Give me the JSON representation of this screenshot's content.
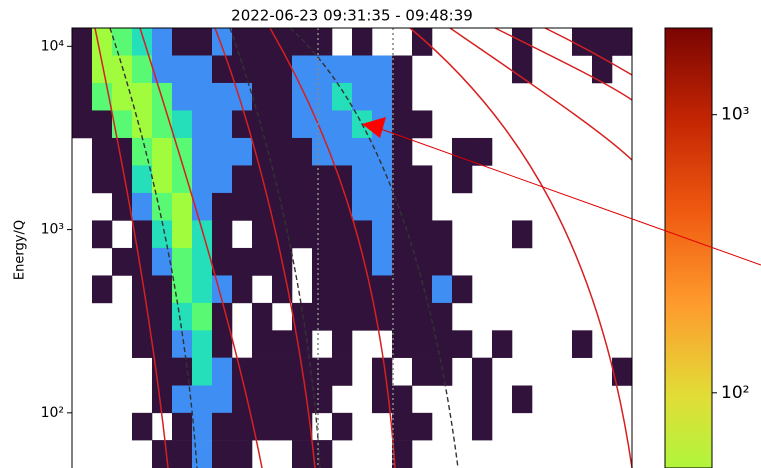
{
  "chart_data": {
    "type": "heatmap",
    "title": "2022-06-23 09:31:35 - 09:48:39",
    "y_label": "Energy/Q",
    "y_log": true,
    "ylim": [
      50,
      12589
    ],
    "y_edges": [
      12589,
      8913,
      6310,
      4467,
      3162,
      2239,
      1585,
      1122,
      794,
      562,
      398,
      282,
      200,
      141,
      100,
      71,
      50
    ],
    "yticks": [
      {
        "value": 10000,
        "label": "10⁴"
      },
      {
        "value": 1000,
        "label": "10³"
      },
      {
        "value": 100,
        "label": "10²"
      }
    ],
    "colormap": "turbo",
    "clim": [
      1,
      2050
    ],
    "colorbar_ticks": [
      {
        "value": 1000,
        "label": "10³"
      },
      {
        "value": 100,
        "label": "10²"
      }
    ],
    "z": [
      [
        1,
        45,
        25,
        12,
        4,
        1,
        1,
        4,
        1,
        1,
        1,
        1,
        1,
        null,
        1,
        null,
        null,
        1,
        null,
        null,
        null,
        null,
        1,
        null,
        null,
        1,
        1,
        1
      ],
      [
        1,
        45,
        45,
        25,
        4,
        4,
        4,
        1,
        1,
        1,
        1,
        4,
        4,
        4,
        4,
        4,
        1,
        null,
        null,
        null,
        null,
        null,
        1,
        null,
        null,
        null,
        1,
        null
      ],
      [
        1,
        25,
        45,
        45,
        25,
        4,
        4,
        4,
        4,
        1,
        1,
        4,
        4,
        12,
        4,
        4,
        1,
        null,
        null,
        null,
        null,
        null,
        null,
        null,
        null,
        null,
        null,
        null
      ],
      [
        1,
        1,
        25,
        45,
        25,
        12,
        4,
        4,
        1,
        1,
        1,
        4,
        4,
        4,
        12,
        4,
        1,
        1,
        null,
        null,
        null,
        null,
        null,
        null,
        null,
        null,
        null,
        null
      ],
      [
        null,
        1,
        1,
        25,
        45,
        25,
        4,
        4,
        4,
        1,
        1,
        1,
        4,
        4,
        4,
        4,
        1,
        null,
        null,
        1,
        1,
        null,
        null,
        null,
        null,
        null,
        null,
        null
      ],
      [
        null,
        1,
        1,
        12,
        45,
        25,
        4,
        4,
        1,
        1,
        1,
        1,
        1,
        1,
        4,
        4,
        1,
        1,
        null,
        1,
        null,
        null,
        null,
        null,
        null,
        null,
        null,
        null
      ],
      [
        null,
        null,
        1,
        4,
        25,
        45,
        4,
        1,
        1,
        1,
        1,
        1,
        1,
        1,
        4,
        4,
        1,
        1,
        null,
        null,
        null,
        null,
        null,
        null,
        null,
        null,
        null,
        null
      ],
      [
        null,
        1,
        null,
        1,
        12,
        45,
        12,
        1,
        null,
        1,
        1,
        1,
        1,
        1,
        1,
        4,
        1,
        1,
        1,
        null,
        null,
        null,
        1,
        null,
        null,
        null,
        null,
        null
      ],
      [
        null,
        null,
        1,
        1,
        4,
        25,
        12,
        1,
        1,
        1,
        1,
        null,
        1,
        1,
        1,
        4,
        1,
        1,
        1,
        null,
        null,
        null,
        null,
        null,
        null,
        null,
        null,
        null
      ],
      [
        null,
        1,
        null,
        1,
        1,
        25,
        12,
        4,
        1,
        null,
        1,
        null,
        1,
        1,
        1,
        1,
        1,
        1,
        4,
        1,
        null,
        null,
        null,
        null,
        null,
        null,
        null,
        null
      ],
      [
        null,
        null,
        null,
        1,
        1,
        12,
        25,
        1,
        null,
        1,
        null,
        1,
        1,
        1,
        1,
        1,
        1,
        1,
        1,
        null,
        null,
        null,
        null,
        null,
        null,
        null,
        null,
        null
      ],
      [
        null,
        null,
        null,
        1,
        1,
        4,
        12,
        1,
        null,
        1,
        1,
        1,
        null,
        1,
        null,
        null,
        1,
        1,
        1,
        1,
        null,
        1,
        null,
        null,
        null,
        1,
        null,
        null
      ],
      [
        null,
        null,
        null,
        null,
        1,
        1,
        12,
        4,
        1,
        1,
        1,
        1,
        1,
        1,
        null,
        1,
        null,
        1,
        1,
        null,
        1,
        null,
        null,
        null,
        null,
        null,
        null,
        1
      ],
      [
        null,
        null,
        null,
        null,
        1,
        4,
        4,
        4,
        1,
        1,
        1,
        1,
        1,
        null,
        null,
        1,
        1,
        null,
        null,
        null,
        1,
        null,
        1,
        null,
        null,
        null,
        null,
        null
      ],
      [
        null,
        null,
        null,
        1,
        null,
        1,
        4,
        1,
        1,
        1,
        1,
        1,
        null,
        1,
        null,
        null,
        1,
        1,
        null,
        null,
        1,
        null,
        null,
        null,
        null,
        null,
        null,
        null
      ],
      [
        null,
        null,
        null,
        null,
        1,
        1,
        4,
        1,
        1,
        null,
        null,
        1,
        1,
        null,
        null,
        null,
        1,
        null,
        null,
        null,
        null,
        null,
        null,
        null,
        null,
        null,
        null,
        null
      ]
    ]
  }
}
